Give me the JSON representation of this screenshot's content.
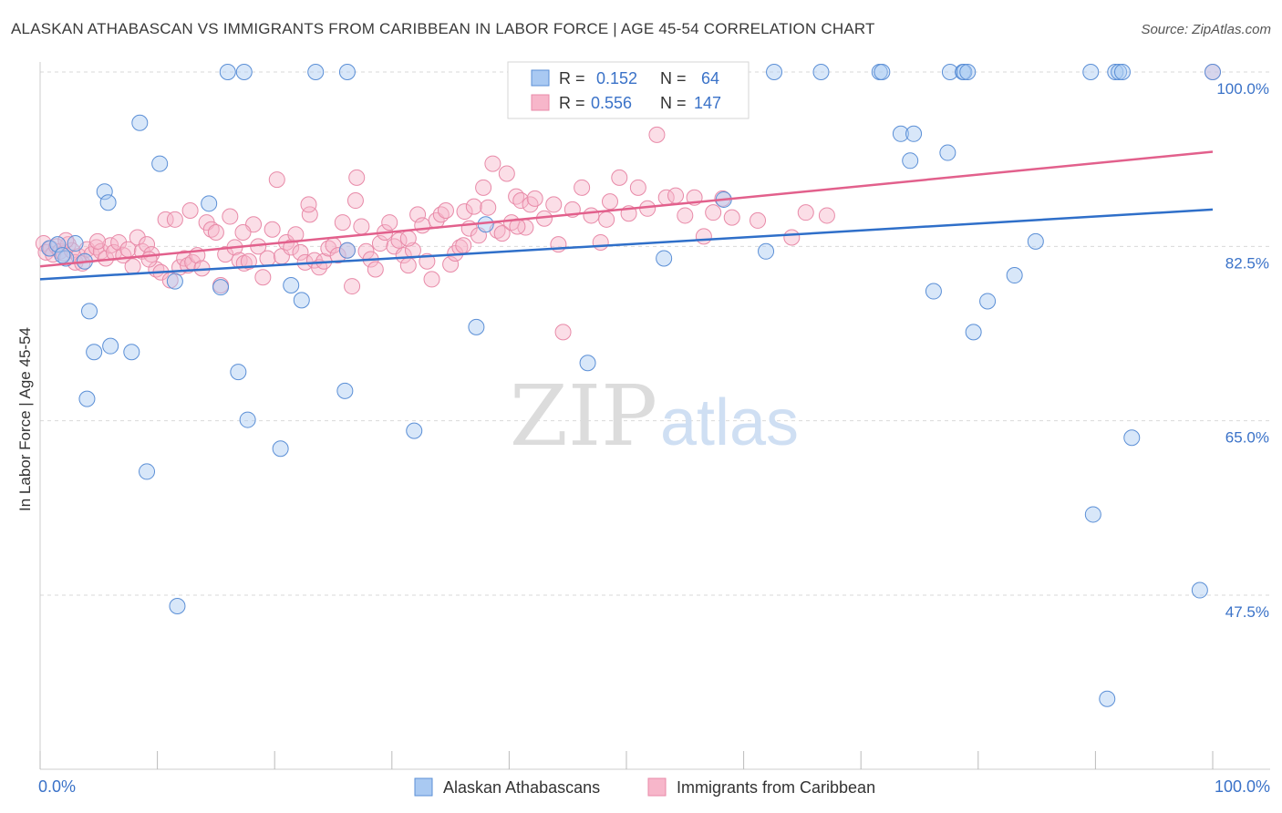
{
  "title": "ALASKAN ATHABASCAN VS IMMIGRANTS FROM CARIBBEAN IN LABOR FORCE | AGE 45-54 CORRELATION CHART",
  "source": "Source: ZipAtlas.com",
  "watermark": {
    "zip": "ZIP",
    "atlas": "atlas"
  },
  "colors": {
    "blue_fill": "#a9c9f2",
    "blue_stroke": "#5b8fd6",
    "blue_line": "#2f6fc9",
    "pink_fill": "#f7b6ca",
    "pink_stroke": "#e88aa8",
    "pink_line": "#e2608c",
    "axis_text": "#3a72c8",
    "grid": "#d9d9d9"
  },
  "legend": {
    "rows": [
      {
        "r_label": "R =",
        "r_value": "0.152",
        "n_label": "N =",
        "n_value": "64"
      },
      {
        "r_label": "R =",
        "r_value": "0.556",
        "n_label": "N =",
        "n_value": "147"
      }
    ]
  },
  "bottom_legend": [
    "Alaskan Athabascans",
    "Immigrants from Caribbean"
  ],
  "chart_data": {
    "type": "scatter",
    "title": "ALASKAN ATHABASCAN VS IMMIGRANTS FROM CARIBBEAN IN LABOR FORCE | AGE 45-54 CORRELATION CHART",
    "xlabel": "",
    "ylabel": "In Labor Force | Age 45-54",
    "xlim": [
      0,
      100
    ],
    "ylim": [
      30,
      102
    ],
    "x_tick_labels": [
      "0.0%",
      "100.0%"
    ],
    "y_ticks": [
      47.5,
      65.0,
      82.5,
      100.0
    ],
    "y_tick_labels": [
      "47.5%",
      "65.0%",
      "82.5%",
      "100.0%"
    ],
    "grid": true,
    "legend_position": "top-center",
    "series": [
      {
        "name": "Alaskan Athabascans",
        "trend": {
          "x": [
            0,
            100
          ],
          "y": [
            79.2,
            86.2
          ]
        },
        "points": [
          [
            0.8,
            82.3
          ],
          [
            1.5,
            82.7
          ],
          [
            2.2,
            81.3
          ],
          [
            3.8,
            81.0
          ],
          [
            5.5,
            88.0
          ],
          [
            5.8,
            86.9
          ],
          [
            8.5,
            94.9
          ],
          [
            10.2,
            90.8
          ],
          [
            11.5,
            79.0
          ],
          [
            14.4,
            86.8
          ],
          [
            15.4,
            78.4
          ],
          [
            16,
            100
          ],
          [
            17.4,
            100
          ],
          [
            23.5,
            100
          ],
          [
            26.2,
            100
          ],
          [
            4.2,
            76.0
          ],
          [
            4.6,
            71.9
          ],
          [
            6.0,
            72.5
          ],
          [
            7.8,
            71.9
          ],
          [
            4.0,
            67.2
          ],
          [
            9.1,
            59.9
          ],
          [
            11.7,
            46.4
          ],
          [
            16.9,
            69.9
          ],
          [
            17.7,
            65.1
          ],
          [
            20.5,
            62.2
          ],
          [
            21.4,
            78.6
          ],
          [
            22.3,
            77.1
          ],
          [
            26.0,
            68.0
          ],
          [
            26.2,
            82.1
          ],
          [
            31.9,
            64.0
          ],
          [
            37.2,
            74.4
          ],
          [
            38.0,
            84.7
          ],
          [
            46.7,
            70.8
          ],
          [
            53.2,
            81.3
          ],
          [
            58.3,
            87.2
          ],
          [
            61.9,
            82.0
          ],
          [
            62.6,
            100
          ],
          [
            66.6,
            100
          ],
          [
            71.6,
            100
          ],
          [
            71.8,
            100
          ],
          [
            73.4,
            93.8
          ],
          [
            74.2,
            91.1
          ],
          [
            74.5,
            93.8
          ],
          [
            76.2,
            78.0
          ],
          [
            77.4,
            91.9
          ],
          [
            77.6,
            100
          ],
          [
            78.7,
            100
          ],
          [
            78.8,
            100
          ],
          [
            79.1,
            100
          ],
          [
            79.6,
            73.9
          ],
          [
            80.8,
            77.0
          ],
          [
            83.1,
            79.6
          ],
          [
            84.9,
            83.0
          ],
          [
            89.6,
            100
          ],
          [
            89.8,
            55.6
          ],
          [
            91.0,
            37.1
          ],
          [
            91.7,
            100
          ],
          [
            92.0,
            100
          ],
          [
            92.3,
            100
          ],
          [
            93.1,
            63.3
          ],
          [
            98.9,
            48.0
          ],
          [
            100,
            100
          ],
          [
            1.9,
            81.6
          ],
          [
            3.0,
            82.8
          ]
        ]
      },
      {
        "name": "Immigrants from Caribbean",
        "trend": {
          "x": [
            0,
            100
          ],
          "y": [
            80.5,
            92.0
          ]
        },
        "points": [
          [
            0.3,
            82.8
          ],
          [
            0.5,
            81.9
          ],
          [
            0.9,
            82.3
          ],
          [
            1.1,
            81.7
          ],
          [
            1.4,
            82.5
          ],
          [
            1.7,
            82.0
          ],
          [
            2.0,
            81.8
          ],
          [
            2.4,
            82.7
          ],
          [
            2.7,
            82.1
          ],
          [
            3.0,
            80.9
          ],
          [
            3.3,
            81.5
          ],
          [
            3.6,
            80.8
          ],
          [
            4.0,
            82.2
          ],
          [
            4.4,
            81.7
          ],
          [
            4.8,
            82.4
          ],
          [
            5.2,
            82.0
          ],
          [
            5.6,
            81.3
          ],
          [
            6.0,
            82.6
          ],
          [
            6.3,
            81.9
          ],
          [
            6.7,
            82.9
          ],
          [
            7.1,
            81.6
          ],
          [
            7.5,
            82.2
          ],
          [
            7.9,
            80.5
          ],
          [
            8.3,
            83.4
          ],
          [
            8.7,
            82.0
          ],
          [
            9.1,
            82.7
          ],
          [
            9.5,
            81.7
          ],
          [
            9.9,
            80.2
          ],
          [
            10.3,
            79.9
          ],
          [
            10.7,
            85.2
          ],
          [
            11.1,
            79.1
          ],
          [
            11.5,
            85.2
          ],
          [
            11.9,
            80.4
          ],
          [
            12.3,
            81.3
          ],
          [
            12.6,
            80.6
          ],
          [
            13.0,
            80.9
          ],
          [
            13.4,
            81.6
          ],
          [
            13.8,
            80.3
          ],
          [
            14.2,
            84.9
          ],
          [
            14.6,
            84.2
          ],
          [
            15.0,
            83.9
          ],
          [
            15.4,
            78.6
          ],
          [
            15.8,
            81.7
          ],
          [
            16.2,
            85.5
          ],
          [
            16.6,
            82.4
          ],
          [
            17.0,
            81.1
          ],
          [
            17.4,
            80.8
          ],
          [
            17.8,
            81.0
          ],
          [
            18.2,
            84.7
          ],
          [
            18.6,
            82.5
          ],
          [
            19.0,
            79.4
          ],
          [
            19.4,
            81.3
          ],
          [
            19.8,
            84.2
          ],
          [
            20.2,
            89.2
          ],
          [
            20.6,
            81.5
          ],
          [
            21.0,
            82.9
          ],
          [
            21.4,
            82.4
          ],
          [
            21.8,
            83.7
          ],
          [
            22.2,
            81.9
          ],
          [
            22.6,
            80.9
          ],
          [
            23.0,
            85.7
          ],
          [
            23.4,
            81.1
          ],
          [
            23.8,
            80.4
          ],
          [
            24.2,
            81.0
          ],
          [
            24.6,
            82.3
          ],
          [
            25.0,
            82.6
          ],
          [
            25.4,
            81.6
          ],
          [
            25.8,
            84.9
          ],
          [
            26.2,
            82.1
          ],
          [
            26.6,
            78.5
          ],
          [
            27.0,
            89.4
          ],
          [
            27.4,
            84.5
          ],
          [
            27.8,
            82.0
          ],
          [
            28.2,
            81.2
          ],
          [
            28.6,
            80.2
          ],
          [
            29.0,
            82.8
          ],
          [
            29.4,
            83.9
          ],
          [
            29.8,
            84.9
          ],
          [
            30.2,
            82.5
          ],
          [
            30.6,
            83.1
          ],
          [
            31.0,
            81.6
          ],
          [
            31.4,
            80.6
          ],
          [
            31.8,
            82.1
          ],
          [
            32.2,
            85.7
          ],
          [
            32.6,
            84.6
          ],
          [
            33.0,
            81.0
          ],
          [
            33.4,
            79.2
          ],
          [
            33.8,
            85.1
          ],
          [
            34.2,
            85.7
          ],
          [
            34.6,
            86.1
          ],
          [
            35.0,
            80.7
          ],
          [
            35.4,
            81.8
          ],
          [
            35.8,
            82.4
          ],
          [
            36.2,
            86.0
          ],
          [
            36.6,
            84.3
          ],
          [
            37.0,
            86.5
          ],
          [
            37.4,
            83.6
          ],
          [
            37.8,
            88.4
          ],
          [
            38.2,
            86.4
          ],
          [
            38.6,
            90.8
          ],
          [
            39.0,
            84.1
          ],
          [
            39.4,
            83.8
          ],
          [
            39.8,
            89.8
          ],
          [
            40.2,
            84.9
          ],
          [
            40.6,
            87.5
          ],
          [
            41.0,
            87.1
          ],
          [
            41.4,
            84.4
          ],
          [
            41.8,
            86.7
          ],
          [
            42.2,
            87.3
          ],
          [
            43.0,
            85.3
          ],
          [
            43.8,
            86.7
          ],
          [
            44.6,
            73.9
          ],
          [
            45.4,
            86.2
          ],
          [
            46.2,
            88.4
          ],
          [
            47.0,
            85.6
          ],
          [
            47.8,
            82.9
          ],
          [
            48.6,
            87.0
          ],
          [
            49.4,
            89.4
          ],
          [
            50.2,
            85.8
          ],
          [
            51.0,
            88.4
          ],
          [
            51.8,
            86.3
          ],
          [
            52.6,
            93.7
          ],
          [
            53.4,
            87.4
          ],
          [
            54.2,
            87.6
          ],
          [
            55.0,
            85.6
          ],
          [
            55.8,
            87.4
          ],
          [
            56.6,
            83.5
          ],
          [
            57.4,
            85.9
          ],
          [
            58.2,
            87.3
          ],
          [
            59.0,
            85.4
          ],
          [
            61.2,
            85.1
          ],
          [
            64.1,
            83.4
          ],
          [
            65.3,
            85.9
          ],
          [
            67.1,
            85.6
          ],
          [
            2.2,
            83.1
          ],
          [
            4.9,
            83.0
          ],
          [
            9.3,
            81.2
          ],
          [
            12.8,
            86.1
          ],
          [
            17.3,
            83.9
          ],
          [
            22.9,
            86.7
          ],
          [
            26.9,
            87.1
          ],
          [
            31.4,
            83.3
          ],
          [
            36.1,
            82.6
          ],
          [
            40.7,
            84.5
          ],
          [
            44.2,
            82.7
          ],
          [
            48.3,
            85.2
          ],
          [
            100,
            100
          ]
        ]
      }
    ]
  }
}
